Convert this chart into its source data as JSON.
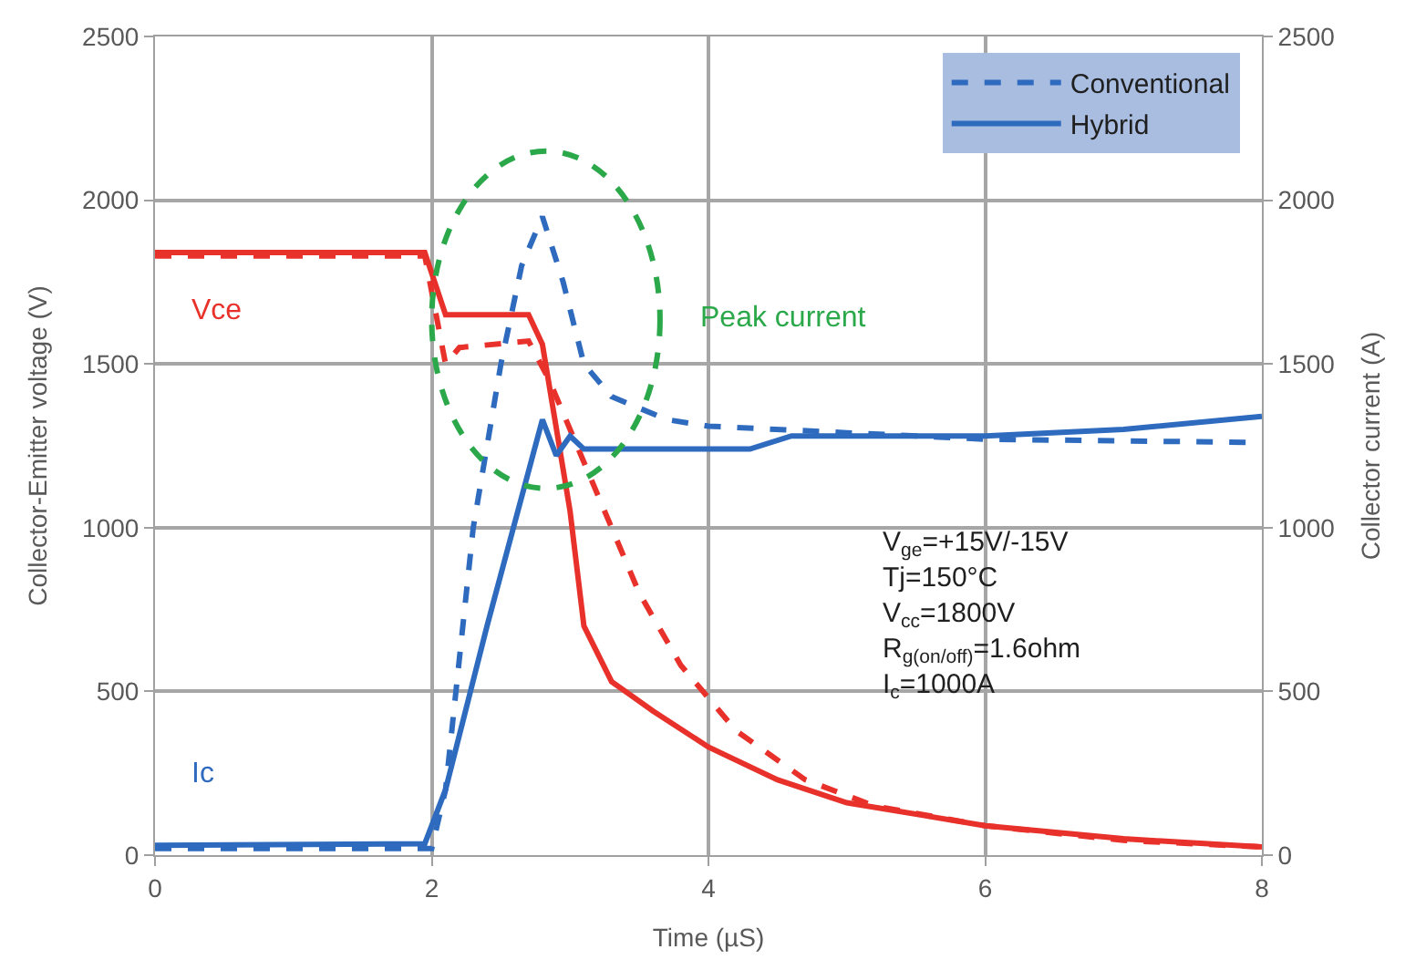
{
  "chart_data": {
    "type": "line",
    "xlabel": "Time (µS)",
    "ylabel": "Collector-Emitter voltage (V)",
    "y2label": "Collector current (A)",
    "xlim": [
      0,
      8
    ],
    "xticks": [
      0,
      2,
      4,
      6,
      8
    ],
    "ylim": [
      0,
      2500
    ],
    "yticks": [
      0,
      500,
      1000,
      1500,
      2000,
      2500
    ],
    "y2lim": [
      0,
      2500
    ],
    "y2ticks": [
      0,
      500,
      1000,
      1500,
      2000,
      2500
    ],
    "grid": true,
    "legend": "top right",
    "marker": "none",
    "series": [
      {
        "color": "#e8312a",
        "line_style": "dashed",
        "x": [
          0,
          1.95,
          2.1,
          2.2,
          2.7,
          2.85,
          3.2,
          3.5,
          3.8,
          4.2,
          4.7,
          5.2,
          6,
          7,
          8
        ],
        "values": [
          1830,
          1830,
          1500,
          1550,
          1570,
          1450,
          1100,
          800,
          580,
          380,
          230,
          150,
          90,
          45,
          25
        ]
      },
      {
        "color": "#e8312a",
        "line_style": "solid",
        "x": [
          0,
          1.95,
          2.1,
          2.7,
          2.8,
          3.0,
          3.1,
          3.3,
          3.6,
          4,
          4.5,
          5,
          6,
          7,
          8
        ],
        "values": [
          1840,
          1840,
          1650,
          1650,
          1560,
          1050,
          700,
          530,
          440,
          330,
          230,
          160,
          90,
          50,
          25
        ]
      },
      {
        "name": "Conventional",
        "axis": "y2",
        "color": "#2e6bbf",
        "line_style": "dashed",
        "x": [
          0,
          2.0,
          2.1,
          2.3,
          2.5,
          2.65,
          2.8,
          2.95,
          3.1,
          3.3,
          3.7,
          4,
          5,
          6,
          8
        ],
        "values": [
          20,
          20,
          200,
          1000,
          1500,
          1800,
          1950,
          1750,
          1500,
          1400,
          1330,
          1310,
          1290,
          1270,
          1260
        ]
      },
      {
        "name": "Hybrid",
        "axis": "y2",
        "color": "#2e6bbf",
        "line_style": "solid",
        "x": [
          0,
          1.95,
          2.1,
          2.4,
          2.8,
          2.9,
          3.0,
          3.1,
          4.3,
          4.6,
          6,
          7,
          8
        ],
        "values": [
          30,
          35,
          200,
          700,
          1330,
          1220,
          1280,
          1240,
          1240,
          1280,
          1280,
          1300,
          1340
        ]
      }
    ],
    "annotations": [
      "Vce",
      "Ic",
      "Peak current",
      "V$_{ge}$=+15V/-15V",
      "Tj=150°C",
      "V$_{cc}$=1800V",
      "R$_{g(on/off)}$=1.6ohm",
      "I$_{c}$=1000A"
    ]
  }
}
